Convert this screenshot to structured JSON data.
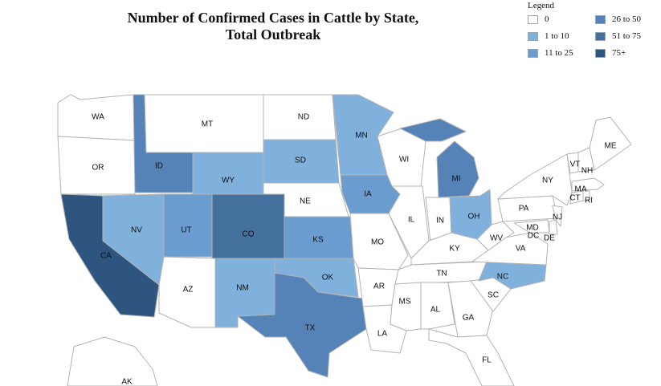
{
  "title_line1": "Number of Confirmed Cases in Cattle by State,",
  "title_line2": "Total Outbreak",
  "legend": {
    "title": "Legend",
    "items": [
      {
        "label": "0",
        "color": "#ffffff"
      },
      {
        "label": "1 to 10",
        "color": "#7fb1dc"
      },
      {
        "label": "11 to 25",
        "color": "#6a9ccf"
      },
      {
        "label": "26 to 50",
        "color": "#5583b8"
      },
      {
        "label": "51 to 75",
        "color": "#44709e"
      },
      {
        "label": "75+",
        "color": "#2d5580"
      }
    ]
  },
  "states": {
    "WA": {
      "label": "WA",
      "bin": 0
    },
    "OR": {
      "label": "OR",
      "bin": 0
    },
    "CA": {
      "label": "CA",
      "bin": 5
    },
    "ID": {
      "label": "ID",
      "bin": 3
    },
    "NV": {
      "label": "NV",
      "bin": 1
    },
    "AZ": {
      "label": "AZ",
      "bin": 0
    },
    "MT": {
      "label": "MT",
      "bin": 0
    },
    "WY": {
      "label": "WY",
      "bin": 1
    },
    "UT": {
      "label": "UT",
      "bin": 2
    },
    "CO": {
      "label": "CO",
      "bin": 4
    },
    "NM": {
      "label": "NM",
      "bin": 1
    },
    "ND": {
      "label": "ND",
      "bin": 0
    },
    "SD": {
      "label": "SD",
      "bin": 1
    },
    "NE": {
      "label": "NE",
      "bin": 0
    },
    "KS": {
      "label": "KS",
      "bin": 2
    },
    "OK": {
      "label": "OK",
      "bin": 1
    },
    "TX": {
      "label": "TX",
      "bin": 3
    },
    "MN": {
      "label": "MN",
      "bin": 1
    },
    "IA": {
      "label": "IA",
      "bin": 2
    },
    "MO": {
      "label": "MO",
      "bin": 0
    },
    "AR": {
      "label": "AR",
      "bin": 0
    },
    "LA": {
      "label": "LA",
      "bin": 0
    },
    "WI": {
      "label": "WI",
      "bin": 0
    },
    "IL": {
      "label": "IL",
      "bin": 0
    },
    "MI": {
      "label": "MI",
      "bin": 3
    },
    "IN": {
      "label": "IN",
      "bin": 0
    },
    "OH": {
      "label": "OH",
      "bin": 1
    },
    "KY": {
      "label": "KY",
      "bin": 0
    },
    "TN": {
      "label": "TN",
      "bin": 0
    },
    "MS": {
      "label": "MS",
      "bin": 0
    },
    "AL": {
      "label": "AL",
      "bin": 0
    },
    "GA": {
      "label": "GA",
      "bin": 0
    },
    "FL": {
      "label": "FL",
      "bin": 0
    },
    "SC": {
      "label": "SC",
      "bin": 0
    },
    "NC": {
      "label": "NC",
      "bin": 1
    },
    "VA": {
      "label": "VA",
      "bin": 0
    },
    "WV": {
      "label": "WV",
      "bin": 0
    },
    "PA": {
      "label": "PA",
      "bin": 0
    },
    "NY": {
      "label": "NY",
      "bin": 0
    },
    "NJ": {
      "label": "NJ",
      "bin": 0
    },
    "MD": {
      "label": "MD",
      "bin": 0
    },
    "DC": {
      "label": "DC",
      "bin": 0
    },
    "DE": {
      "label": "DE",
      "bin": 0
    },
    "VT": {
      "label": "VT",
      "bin": 0
    },
    "NH": {
      "label": "NH",
      "bin": 0
    },
    "ME": {
      "label": "ME",
      "bin": 0
    },
    "MA": {
      "label": "MA",
      "bin": 0
    },
    "CT": {
      "label": "CT",
      "bin": 0
    },
    "RI": {
      "label": "RI",
      "bin": 0
    },
    "AK": {
      "label": "AK",
      "bin": 0
    }
  }
}
